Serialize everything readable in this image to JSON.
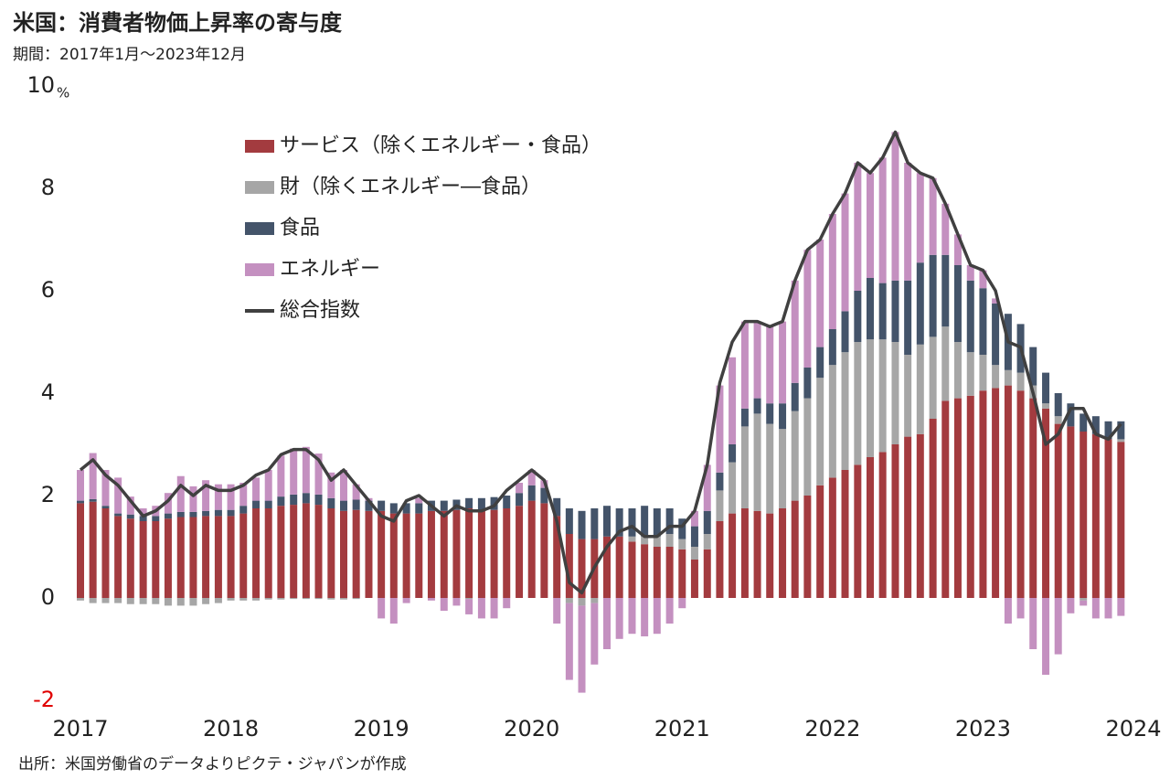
{
  "chart_data": {
    "type": "stacked_bar_line",
    "title": "米国：消費者物価上昇率の寄与度",
    "subtitle": "期間：2017年1月～2023年12月",
    "source": "出所：米国労働省のデータよりピクテ・ジャパンが作成",
    "y_unit": "%",
    "x": [
      2017,
      2017.083,
      2017.167,
      2017.25,
      2017.333,
      2017.417,
      2017.5,
      2017.583,
      2017.667,
      2017.75,
      2017.833,
      2017.917,
      2018,
      2018.083,
      2018.167,
      2018.25,
      2018.333,
      2018.417,
      2018.5,
      2018.583,
      2018.667,
      2018.75,
      2018.833,
      2018.917,
      2019,
      2019.083,
      2019.167,
      2019.25,
      2019.333,
      2019.417,
      2019.5,
      2019.583,
      2019.667,
      2019.75,
      2019.833,
      2019.917,
      2020,
      2020.083,
      2020.167,
      2020.25,
      2020.333,
      2020.417,
      2020.5,
      2020.583,
      2020.667,
      2020.75,
      2020.833,
      2020.917,
      2021,
      2021.083,
      2021.167,
      2021.25,
      2021.333,
      2021.417,
      2021.5,
      2021.583,
      2021.667,
      2021.75,
      2021.833,
      2021.917,
      2022,
      2022.083,
      2022.167,
      2022.25,
      2022.333,
      2022.417,
      2022.5,
      2022.583,
      2022.667,
      2022.75,
      2022.833,
      2022.917,
      2023,
      2023.083,
      2023.167,
      2023.25,
      2023.333,
      2023.417,
      2023.5,
      2023.583,
      2023.667,
      2023.75,
      2023.833,
      2023.917
    ],
    "series": [
      {
        "name": "サービス（除くエネルギー・食品）",
        "color": "#a33b3f",
        "kind": "bar",
        "values": [
          1.85,
          1.88,
          1.75,
          1.6,
          1.55,
          1.5,
          1.5,
          1.55,
          1.58,
          1.58,
          1.6,
          1.6,
          1.6,
          1.65,
          1.75,
          1.75,
          1.8,
          1.82,
          1.85,
          1.82,
          1.75,
          1.7,
          1.72,
          1.7,
          1.7,
          1.65,
          1.65,
          1.65,
          1.7,
          1.7,
          1.72,
          1.75,
          1.7,
          1.72,
          1.75,
          1.8,
          1.9,
          1.85,
          1.6,
          1.25,
          1.15,
          1.15,
          1.2,
          1.2,
          1.1,
          1.05,
          1.0,
          1.0,
          0.95,
          0.75,
          0.95,
          1.5,
          1.65,
          1.75,
          1.7,
          1.65,
          1.75,
          1.9,
          2.0,
          2.2,
          2.35,
          2.5,
          2.6,
          2.75,
          2.85,
          3.0,
          3.15,
          3.2,
          3.5,
          3.85,
          3.9,
          3.95,
          4.05,
          4.1,
          4.15,
          4.05,
          3.9,
          3.7,
          3.4,
          3.35,
          3.25,
          3.2,
          3.1,
          3.05
        ]
      },
      {
        "name": "財（除くエネルギー―食品）",
        "color": "#a6a6a6",
        "kind": "bar",
        "values": [
          -0.05,
          -0.1,
          -0.1,
          -0.1,
          -0.12,
          -0.12,
          -0.12,
          -0.15,
          -0.15,
          -0.15,
          -0.12,
          -0.1,
          -0.05,
          -0.05,
          -0.05,
          -0.03,
          -0.03,
          -0.02,
          -0.02,
          -0.02,
          -0.03,
          -0.03,
          -0.02,
          0,
          0,
          0,
          0,
          0,
          0,
          0,
          0,
          -0.02,
          0,
          0,
          0,
          0,
          0,
          0,
          0,
          -0.1,
          -0.15,
          -0.1,
          0,
          0,
          0.1,
          0.15,
          0.2,
          0.25,
          0.2,
          0.25,
          0.3,
          0.6,
          1.0,
          1.6,
          1.9,
          1.75,
          1.55,
          1.75,
          1.9,
          2.1,
          2.2,
          2.3,
          2.4,
          2.3,
          2.2,
          2.0,
          1.6,
          1.75,
          1.6,
          1.45,
          1.1,
          0.85,
          0.7,
          0.45,
          0.3,
          0.35,
          0.25,
          0.1,
          0.15,
          0,
          -0.05,
          0,
          0,
          0.05
        ]
      },
      {
        "name": "食品",
        "color": "#44546a",
        "kind": "bar",
        "values": [
          0.05,
          0.05,
          0.05,
          0.05,
          0.08,
          0.1,
          0.1,
          0.1,
          0.1,
          0.1,
          0.1,
          0.12,
          0.12,
          0.15,
          0.15,
          0.15,
          0.18,
          0.2,
          0.2,
          0.2,
          0.2,
          0.2,
          0.2,
          0.2,
          0.2,
          0.2,
          0.2,
          0.2,
          0.2,
          0.2,
          0.2,
          0.2,
          0.25,
          0.25,
          0.25,
          0.25,
          0.3,
          0.3,
          0.35,
          0.5,
          0.55,
          0.6,
          0.6,
          0.55,
          0.55,
          0.6,
          0.55,
          0.5,
          0.4,
          0.4,
          0.45,
          0.35,
          0.35,
          0.35,
          0.3,
          0.4,
          0.5,
          0.55,
          0.6,
          0.6,
          0.7,
          0.8,
          1.0,
          1.2,
          1.1,
          1.2,
          1.45,
          1.6,
          1.6,
          1.4,
          1.5,
          1.4,
          1.3,
          1.2,
          1.1,
          0.95,
          0.75,
          0.6,
          0.45,
          0.45,
          0.35,
          0.35,
          0.35,
          0.35
        ]
      },
      {
        "name": "エネルギー",
        "color": "#c490c0",
        "kind": "bar",
        "values": [
          0.6,
          0.9,
          0.7,
          0.7,
          0.35,
          0.15,
          0.2,
          0.4,
          0.7,
          0.5,
          0.6,
          0.5,
          0.5,
          0.45,
          0.45,
          0.6,
          0.8,
          0.9,
          0.9,
          0.8,
          0.5,
          0.6,
          0.3,
          0.05,
          -0.4,
          -0.5,
          -0.1,
          0.1,
          -0.05,
          -0.25,
          -0.15,
          -0.3,
          -0.4,
          -0.4,
          -0.2,
          0.2,
          0.3,
          0.15,
          -0.5,
          -1.5,
          -1.7,
          -1.2,
          -1.0,
          -0.8,
          -0.7,
          -0.75,
          -0.7,
          -0.5,
          -0.2,
          0.3,
          0.9,
          1.7,
          1.7,
          1.7,
          1.5,
          1.5,
          1.6,
          2.0,
          2.3,
          2.1,
          2.25,
          2.3,
          2.5,
          2.05,
          2.45,
          2.9,
          2.3,
          1.75,
          1.5,
          1.0,
          0.6,
          0.3,
          0.35,
          0.1,
          -0.5,
          -0.4,
          -1.0,
          -1.5,
          -1.1,
          -0.3,
          -0.1,
          -0.4,
          -0.4,
          -0.35
        ]
      },
      {
        "name": "総合指数",
        "color": "#404040",
        "kind": "line",
        "values": [
          2.5,
          2.7,
          2.4,
          2.2,
          1.9,
          1.6,
          1.7,
          1.9,
          2.2,
          2.0,
          2.2,
          2.1,
          2.1,
          2.2,
          2.4,
          2.5,
          2.8,
          2.9,
          2.9,
          2.7,
          2.3,
          2.5,
          2.2,
          1.9,
          1.6,
          1.5,
          1.9,
          2.0,
          1.8,
          1.6,
          1.8,
          1.7,
          1.7,
          1.8,
          2.1,
          2.3,
          2.5,
          2.3,
          1.5,
          0.3,
          0.1,
          0.6,
          1.0,
          1.3,
          1.4,
          1.2,
          1.2,
          1.4,
          1.4,
          1.7,
          2.6,
          4.2,
          5.0,
          5.4,
          5.4,
          5.3,
          5.4,
          6.2,
          6.8,
          7.0,
          7.5,
          7.9,
          8.5,
          8.3,
          8.6,
          9.1,
          8.5,
          8.3,
          8.2,
          7.7,
          7.1,
          6.5,
          6.4,
          6.0,
          5.0,
          4.9,
          4.0,
          3.0,
          3.2,
          3.7,
          3.7,
          3.2,
          3.1,
          3.4
        ]
      }
    ],
    "xlim": [
      2017,
      2024
    ],
    "xticks": [
      2017,
      2018,
      2019,
      2020,
      2021,
      2022,
      2023,
      2024
    ],
    "ylim": [
      -2,
      10
    ],
    "yticks": [
      -2,
      0,
      2,
      4,
      6,
      8,
      10
    ],
    "negative_tick_color": "#e00000",
    "grid": false,
    "legend": "upper left"
  }
}
